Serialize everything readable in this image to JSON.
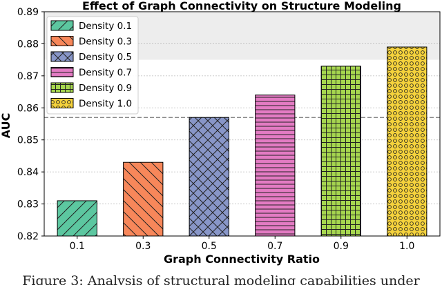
{
  "chart_data": {
    "type": "bar",
    "title": "Effect of Graph Connectivity on Structure Modeling",
    "xlabel": "Graph Connectivity Ratio",
    "ylabel": "AUC",
    "categories": [
      "0.1",
      "0.3",
      "0.5",
      "0.7",
      "0.9",
      "1.0"
    ],
    "values": [
      0.831,
      0.843,
      0.857,
      0.864,
      0.873,
      0.879
    ],
    "series_names": [
      "Density 0.1",
      "Density 0.3",
      "Density 0.5",
      "Density 0.7",
      "Density 0.9",
      "Density 1.0"
    ],
    "colors": [
      "#5cc7a0",
      "#f7875a",
      "#8896c8",
      "#e37bc3",
      "#a6d64f",
      "#f5d23c"
    ],
    "patterns": [
      "diagonal-forward",
      "diagonal-back",
      "crosshatch-diagonal",
      "horizontal-lines",
      "grid",
      "circles"
    ],
    "ylim": [
      0.82,
      0.89
    ],
    "yticks": [
      "0.82",
      "0.83",
      "0.84",
      "0.85",
      "0.86",
      "0.87",
      "0.88",
      "0.89"
    ],
    "reference_line": 0.857,
    "shaded_band": [
      0.875,
      0.89
    ],
    "grid": "horizontal-dotted",
    "legend_position": "upper-left"
  },
  "caption": "Figure 3: Analysis of structural modeling capabilities under"
}
